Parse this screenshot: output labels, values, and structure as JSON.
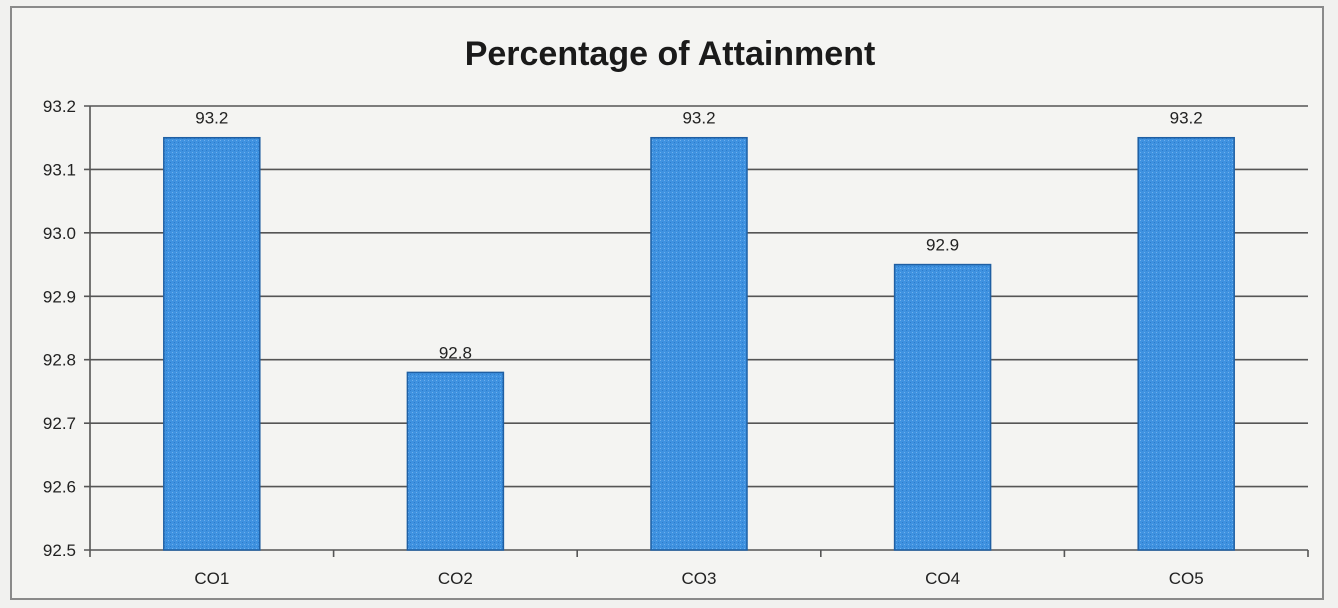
{
  "chart_data": {
    "type": "bar",
    "title": "Percentage of Attainment",
    "categories": [
      "CO1",
      "CO2",
      "CO3",
      "CO4",
      "CO5"
    ],
    "values": [
      93.15,
      92.78,
      93.15,
      92.95,
      93.15
    ],
    "data_labels": [
      "93.2",
      "92.8",
      "93.2",
      "92.9",
      "93.2"
    ],
    "ylim": [
      92.5,
      93.2
    ],
    "yticks": [
      "92.5",
      "92.6",
      "92.7",
      "92.8",
      "92.9",
      "93.0",
      "93.1",
      "93.2"
    ],
    "grid": true,
    "legend": "none",
    "bar_color": "#3d8fde",
    "bar_edge_color": "#1f5fa3"
  }
}
